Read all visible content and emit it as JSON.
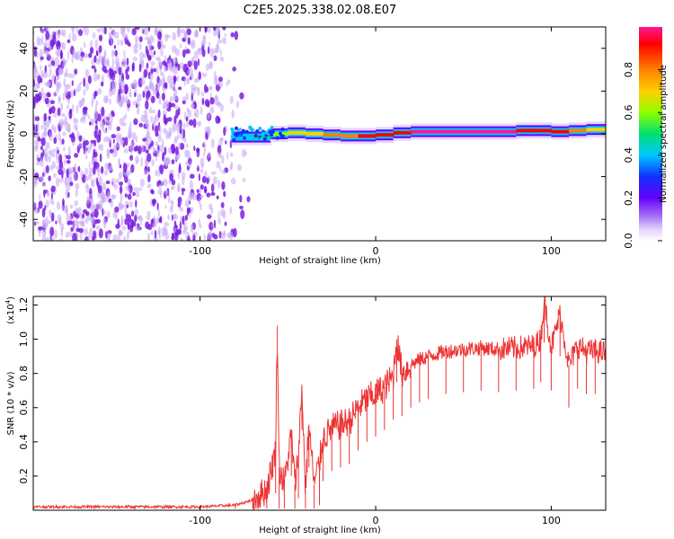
{
  "colors": {
    "snr_line": "#ee3333",
    "background": "#ffffff",
    "scatter_noise": "#7a1fe0",
    "colormap": [
      "#ffffff",
      "#e6d6ff",
      "#a06cf2",
      "#6600ff",
      "#1030ff",
      "#00c8ff",
      "#00e070",
      "#90ff00",
      "#ffd000",
      "#ff8000",
      "#ff0000",
      "#ff1493"
    ]
  },
  "chart_data": [
    {
      "type": "heatmap",
      "title": "C2E5.2025.338.02.08.E07",
      "xlabel": "Height of straight line (km)",
      "ylabel": "Frequency (Hz)",
      "xlim": [
        -195,
        131
      ],
      "ylim": [
        -50,
        50
      ],
      "xticks": [
        -100,
        0,
        100
      ],
      "xtick_labels": [
        "-100",
        "0",
        "100"
      ],
      "yticks": [
        -40,
        -20,
        0,
        20,
        40
      ],
      "ytick_labels": [
        "-40",
        "-20",
        "0",
        "20",
        "40"
      ],
      "noise_region_x": [
        -195,
        -70
      ],
      "ridge": {
        "x": [
          -82,
          -70,
          -60,
          -50,
          -40,
          -30,
          -20,
          -10,
          0,
          10,
          20,
          40,
          60,
          80,
          90,
          100,
          110,
          120,
          131
        ],
        "frequency": [
          -1,
          -2,
          -1,
          1,
          0,
          0,
          -1,
          -1,
          -1,
          0,
          1,
          1,
          1,
          1,
          2,
          1,
          1,
          2,
          2
        ],
        "amplitude": [
          0.3,
          0.4,
          0.5,
          0.6,
          0.65,
          0.75,
          0.8,
          0.8,
          0.85,
          0.85,
          0.95,
          0.95,
          0.95,
          0.9,
          0.85,
          0.9,
          0.85,
          0.7,
          0.6
        ]
      },
      "colorbar": {
        "label": "Normalized spectral amplitude",
        "range": [
          0,
          1
        ],
        "ticks": [
          0.0,
          0.2,
          0.4,
          0.6,
          0.8
        ],
        "tick_labels": [
          "0.0",
          "0.2",
          "0.4",
          "0.6",
          "0.8"
        ]
      }
    },
    {
      "type": "line",
      "xlabel": "Height of straight line (km)",
      "ylabel": "SNR (10 * v/v)",
      "y_scale_label": "(x10",
      "y_scale_exponent": "4",
      "y_scale_close": ")",
      "xlim": [
        -195,
        131
      ],
      "ylim": [
        0,
        1.25
      ],
      "xticks": [
        -100,
        0,
        100
      ],
      "xtick_labels": [
        "-100",
        "0",
        "100"
      ],
      "yticks": [
        0.2,
        0.4,
        0.6,
        0.8,
        1.0,
        1.2
      ],
      "ytick_labels": [
        "0.2",
        "0.4",
        "0.6",
        "0.8",
        "1.0",
        "1.2"
      ],
      "series": [
        {
          "name": "SNR",
          "x": [
            -195,
            -150,
            -100,
            -80,
            -70,
            -62,
            -57,
            -56,
            -55,
            -52,
            -48,
            -46,
            -44,
            -42,
            -40,
            -38,
            -35,
            -32,
            -30,
            -25,
            -20,
            -15,
            -10,
            -5,
            0,
            5,
            10,
            12,
            15,
            20,
            25,
            30,
            40,
            50,
            60,
            70,
            80,
            90,
            94,
            96,
            100,
            105,
            110,
            115,
            120,
            125,
            131
          ],
          "y": [
            0.02,
            0.02,
            0.02,
            0.03,
            0.06,
            0.12,
            0.35,
            1.08,
            0.25,
            0.15,
            0.45,
            0.15,
            0.32,
            0.72,
            0.12,
            0.5,
            0.15,
            0.28,
            0.42,
            0.48,
            0.5,
            0.52,
            0.6,
            0.65,
            0.68,
            0.72,
            0.78,
            1.0,
            0.8,
            0.85,
            0.88,
            0.9,
            0.93,
            0.94,
            0.95,
            0.94,
            0.95,
            0.96,
            1.0,
            1.23,
            0.95,
            1.15,
            0.85,
            0.96,
            0.93,
            0.93,
            0.92
          ]
        }
      ]
    }
  ]
}
